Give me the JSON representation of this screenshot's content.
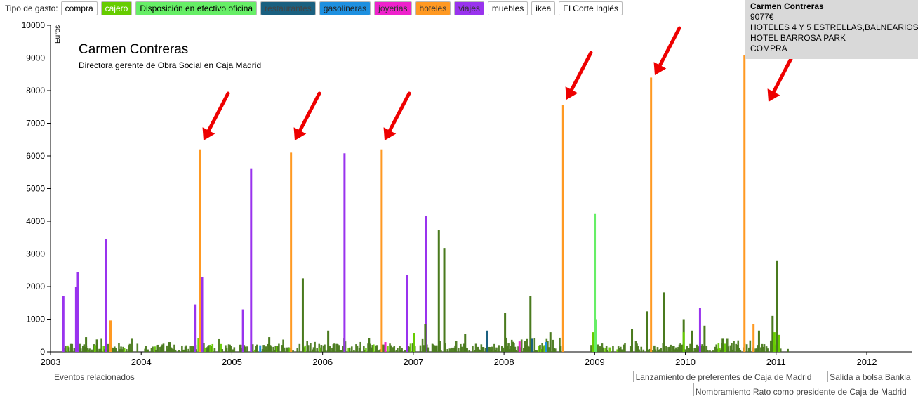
{
  "filters": {
    "label": "Tipo de gasto:",
    "items": [
      {
        "label": "compra",
        "bg": "#ffffff",
        "fg": "#000000"
      },
      {
        "label": "cajero",
        "bg": "#66cc00",
        "fg": "#ffffff"
      },
      {
        "label": "Disposición en efectivo oficina",
        "bg": "#66ee66",
        "fg": "#000000"
      },
      {
        "label": "restaurantes",
        "bg": "#1a6080",
        "fg": "#444444"
      },
      {
        "label": "gasolineras",
        "bg": "#1e90e0",
        "fg": "#222222"
      },
      {
        "label": "joyerias",
        "bg": "#ee22cc",
        "fg": "#333333"
      },
      {
        "label": "hoteles",
        "bg": "#ff9922",
        "fg": "#333333"
      },
      {
        "label": "viajes",
        "bg": "#9933ee",
        "fg": "#333333"
      },
      {
        "label": "muebles",
        "bg": "#ffffff",
        "fg": "#000000"
      },
      {
        "label": "ikea",
        "bg": "#ffffff",
        "fg": "#000000"
      },
      {
        "label": "El Corte Inglés",
        "bg": "#ffffff",
        "fg": "#000000"
      }
    ]
  },
  "tooltip": {
    "name": "Carmen Contreras",
    "amount": "9077€",
    "category": "HOTELES 4 Y 5 ESTRELLAS,BALNEARIOS",
    "merchant": "HOTEL BARROSA PARK",
    "type": "COMPRA"
  },
  "events": {
    "title": "Eventos relacionados",
    "items": [
      {
        "label": "Lanzamiento de preferentes de Caja de Madrid",
        "date": 2009.42
      },
      {
        "label": "Salida a bolsa Bankia",
        "date": 2011.56
      },
      {
        "label": "Nombramiento Rato como presidente de Caja de Madrid",
        "date": 2010.08
      }
    ]
  },
  "chart_data": {
    "type": "bar",
    "title": "Carmen Contreras",
    "subtitle": "Directora gerente de Obra Social en Caja Madrid",
    "ylabel": "Euros",
    "xlabel": "",
    "xlim": [
      2003,
      2012.5
    ],
    "ylim": [
      0,
      10000
    ],
    "xticks": [
      2003,
      2004,
      2005,
      2006,
      2007,
      2008,
      2009,
      2010,
      2011,
      2012
    ],
    "yticks": [
      0,
      1000,
      2000,
      3000,
      4000,
      5000,
      6000,
      7000,
      8000,
      9000,
      10000
    ],
    "colors": {
      "compra": "#4a7a1e",
      "cajero": "#66cc00",
      "efectivo": "#66ee66",
      "restaurantes": "#1a6080",
      "gasolineras": "#1e90e0",
      "joyerias": "#ee22cc",
      "hoteles": "#ff9922",
      "viajes": "#9933ee"
    },
    "series": [
      {
        "name": "viajes",
        "points": [
          [
            2003.13,
            1700
          ],
          [
            2003.27,
            2000
          ],
          [
            2003.29,
            2450
          ],
          [
            2003.6,
            3450
          ],
          [
            2004.58,
            1450
          ],
          [
            2004.66,
            2300
          ],
          [
            2005.11,
            1300
          ],
          [
            2005.2,
            5620
          ],
          [
            2006.23,
            6080
          ],
          [
            2006.92,
            2350
          ],
          [
            2007.13,
            4170
          ],
          [
            2010.15,
            1350
          ]
        ]
      },
      {
        "name": "hoteles",
        "points": [
          [
            2003.65,
            960
          ],
          [
            2004.64,
            6200
          ],
          [
            2005.64,
            6100
          ],
          [
            2006.64,
            6200
          ],
          [
            2008.64,
            7550
          ],
          [
            2009.61,
            8400
          ],
          [
            2010.64,
            9077
          ],
          [
            2010.74,
            850
          ]
        ]
      },
      {
        "name": "compra",
        "points": [
          [
            2007.27,
            3720
          ],
          [
            2007.33,
            3180
          ],
          [
            2005.77,
            2250
          ],
          [
            2011.0,
            2800
          ],
          [
            2010.95,
            1100
          ],
          [
            2009.75,
            1820
          ],
          [
            2009.57,
            1240
          ],
          [
            2008.28,
            1720
          ],
          [
            2008.0,
            1200
          ],
          [
            2009.97,
            1000
          ],
          [
            2010.2,
            800
          ],
          [
            2010.06,
            650
          ],
          [
            2007.12,
            850
          ],
          [
            2006.05,
            650
          ],
          [
            2007.56,
            550
          ],
          [
            2008.5,
            600
          ],
          [
            2003.38,
            450
          ],
          [
            2003.5,
            380
          ],
          [
            2004.3,
            300
          ],
          [
            2005.4,
            450
          ],
          [
            2006.5,
            420
          ],
          [
            2007.8,
            480
          ],
          [
            2009.4,
            700
          ],
          [
            2010.4,
            400
          ],
          [
            2010.8,
            650
          ]
        ]
      },
      {
        "name": "cajero",
        "points": [
          [
            2007.0,
            580
          ],
          [
            2009.97,
            600
          ],
          [
            2010.97,
            600
          ],
          [
            2008.97,
            600
          ],
          [
            2011.02,
            520
          ]
        ]
      },
      {
        "name": "efectivo",
        "points": [
          [
            2008.99,
            4220
          ],
          [
            2009.0,
            1000
          ]
        ]
      },
      {
        "name": "restaurantes",
        "points": [
          [
            2007.8,
            650
          ],
          [
            2008.3,
            400
          ]
        ]
      },
      {
        "name": "gasolineras",
        "points": [
          [
            2008.45,
            300
          ],
          [
            2005.3,
            200
          ]
        ]
      },
      {
        "name": "joyerias",
        "points": [
          [
            2006.68,
            300
          ],
          [
            2008.16,
            320
          ]
        ]
      }
    ]
  }
}
